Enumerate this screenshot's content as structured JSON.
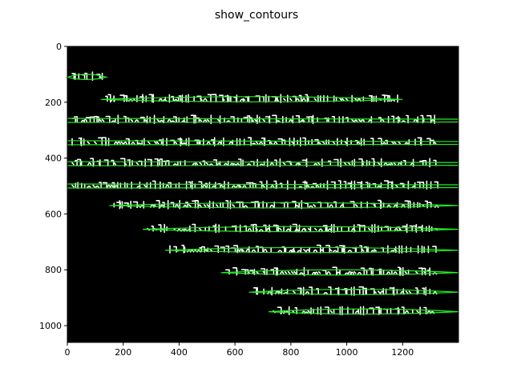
{
  "chart_data": {
    "type": "image",
    "title": "show_contours",
    "xlabel": "",
    "ylabel": "",
    "xlim": [
      0,
      1400
    ],
    "ylim": [
      1060,
      0
    ],
    "x_ticks": [
      0,
      200,
      400,
      600,
      800,
      1000,
      1200
    ],
    "y_ticks": [
      0,
      200,
      400,
      600,
      800,
      1000
    ],
    "background_color": "#000000",
    "foreground_color": "#ffffff",
    "contour_color": "#22ee22",
    "contours": [
      {
        "x_start": 0,
        "x_end": 140,
        "y": 110
      },
      {
        "x_start": 120,
        "x_end": 1200,
        "y": 190
      },
      {
        "x_start": 0,
        "x_end": 1400,
        "y": 265
      },
      {
        "x_start": 0,
        "x_end": 1400,
        "y": 345
      },
      {
        "x_start": 0,
        "x_end": 1400,
        "y": 420
      },
      {
        "x_start": 0,
        "x_end": 1400,
        "y": 500
      },
      {
        "x_start": 150,
        "x_end": 1400,
        "y": 570
      },
      {
        "x_start": 270,
        "x_end": 1400,
        "y": 655
      },
      {
        "x_start": 350,
        "x_end": 1400,
        "y": 730
      },
      {
        "x_start": 550,
        "x_end": 1400,
        "y": 810
      },
      {
        "x_start": 650,
        "x_end": 1400,
        "y": 880
      },
      {
        "x_start": 720,
        "x_end": 1400,
        "y": 950
      }
    ]
  }
}
